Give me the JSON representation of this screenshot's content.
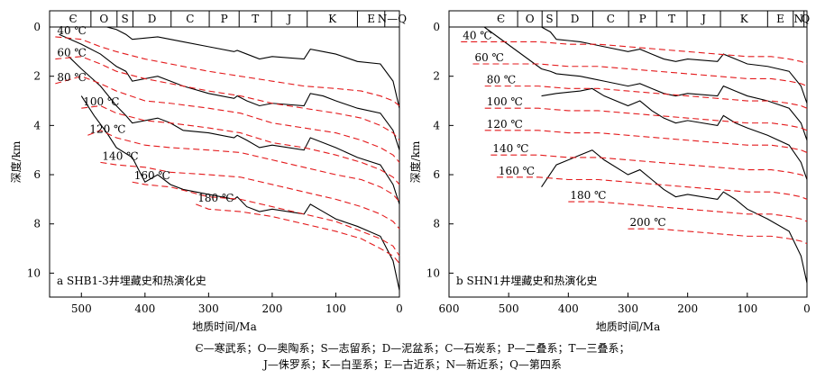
{
  "colors": {
    "burial": "#000000",
    "isotherm": "#e41a1c",
    "frame": "#000000"
  },
  "chart_data": [
    {
      "type": "line",
      "panel_label": "a SHB1-3井埋藏史和热演化史",
      "xlabel": "地质时间/Ma",
      "ylabel": "深度/km",
      "xlim": [
        550,
        0
      ],
      "ylim": [
        11,
        -0.5
      ],
      "xticks": [
        500,
        400,
        300,
        200,
        100,
        0
      ],
      "yticks": [
        0,
        2,
        4,
        6,
        8,
        10
      ],
      "periods": [
        {
          "label": "Є",
          "start": 541,
          "end": 485
        },
        {
          "label": "O",
          "start": 485,
          "end": 444
        },
        {
          "label": "S",
          "start": 444,
          "end": 419
        },
        {
          "label": "D",
          "start": 419,
          "end": 359
        },
        {
          "label": "C",
          "start": 359,
          "end": 299
        },
        {
          "label": "P",
          "start": 299,
          "end": 252
        },
        {
          "label": "T",
          "start": 252,
          "end": 201
        },
        {
          "label": "J",
          "start": 201,
          "end": 145
        },
        {
          "label": "K",
          "start": 145,
          "end": 66
        },
        {
          "label": "E",
          "start": 66,
          "end": 23
        },
        {
          "label": "N—Q",
          "start": 23,
          "end": 0
        }
      ],
      "burial_lines": [
        {
          "x": [
            541,
            500,
            460,
            445,
            430,
            420,
            380,
            360,
            340,
            300,
            260,
            255,
            240,
            220,
            200,
            150,
            140,
            120,
            100,
            66,
            30,
            10,
            0
          ],
          "y": [
            0,
            0,
            0,
            0.1,
            0.3,
            0.5,
            0.4,
            0.5,
            0.6,
            0.8,
            1.0,
            0.95,
            1.1,
            1.3,
            1.2,
            1.3,
            0.9,
            1.0,
            1.1,
            1.4,
            1.5,
            2.2,
            3.3
          ]
        },
        {
          "x": [
            535,
            500,
            470,
            445,
            430,
            420,
            380,
            360,
            340,
            300,
            260,
            255,
            240,
            220,
            200,
            150,
            140,
            120,
            100,
            66,
            30,
            10,
            0
          ],
          "y": [
            0.3,
            0.7,
            1.1,
            1.6,
            1.8,
            2.2,
            2.0,
            2.2,
            2.4,
            2.7,
            2.9,
            2.8,
            3.0,
            3.2,
            3.1,
            3.2,
            2.7,
            2.8,
            3.0,
            3.3,
            3.5,
            4.2,
            5.0
          ]
        },
        {
          "x": [
            520,
            500,
            470,
            445,
            430,
            420,
            380,
            360,
            340,
            300,
            260,
            255,
            240,
            220,
            200,
            150,
            140,
            120,
            100,
            66,
            30,
            10,
            0
          ],
          "y": [
            1.2,
            1.7,
            2.4,
            3.2,
            3.6,
            3.9,
            3.7,
            3.9,
            4.2,
            4.3,
            4.5,
            4.4,
            4.6,
            4.9,
            4.8,
            5.0,
            4.5,
            4.7,
            4.9,
            5.3,
            5.6,
            6.4,
            7.2
          ]
        },
        {
          "x": [
            500,
            480,
            460,
            445,
            420,
            400,
            380,
            360,
            340,
            300,
            260,
            255,
            240,
            220,
            200,
            150,
            140,
            120,
            100,
            66,
            30,
            10,
            0
          ],
          "y": [
            2.8,
            3.6,
            4.3,
            4.9,
            5.3,
            6.3,
            6.0,
            6.4,
            6.6,
            6.8,
            7.0,
            6.9,
            7.3,
            7.5,
            7.4,
            7.6,
            7.2,
            7.5,
            7.8,
            8.1,
            8.5,
            9.5,
            10.7
          ]
        }
      ],
      "isotherms": [
        {
          "label": "40 ℃",
          "x": [
            541,
            500,
            470,
            445,
            400,
            360,
            300,
            250,
            200,
            150,
            100,
            60,
            30,
            10,
            0
          ],
          "y": [
            0.4,
            0.5,
            0.8,
            1.0,
            1.3,
            1.5,
            1.8,
            2.0,
            2.2,
            2.4,
            2.5,
            2.6,
            2.8,
            3.0,
            3.2
          ]
        },
        {
          "label": "60 ℃",
          "x": [
            541,
            500,
            470,
            445,
            400,
            360,
            300,
            250,
            200,
            150,
            100,
            60,
            30,
            10,
            0
          ],
          "y": [
            1.3,
            1.2,
            1.5,
            1.8,
            2.1,
            2.3,
            2.6,
            2.8,
            3.1,
            3.3,
            3.5,
            3.7,
            4.0,
            4.3,
            4.6
          ]
        },
        {
          "label": "80 ℃",
          "x": [
            541,
            500,
            470,
            445,
            400,
            360,
            300,
            250,
            200,
            150,
            100,
            60,
            30,
            10,
            0
          ],
          "y": [
            2.3,
            2.0,
            2.3,
            2.6,
            3.0,
            3.1,
            3.3,
            3.5,
            3.9,
            4.1,
            4.3,
            4.6,
            4.9,
            5.2,
            5.5
          ]
        },
        {
          "label": "100 ℃",
          "x": [
            500,
            470,
            445,
            400,
            360,
            300,
            250,
            200,
            150,
            100,
            60,
            30,
            10,
            0
          ],
          "y": [
            3.3,
            3.2,
            3.5,
            3.8,
            3.9,
            4.1,
            4.3,
            4.7,
            4.9,
            5.2,
            5.5,
            5.8,
            6.1,
            6.4
          ]
        },
        {
          "label": "120 ℃",
          "x": [
            490,
            470,
            445,
            400,
            360,
            300,
            250,
            200,
            150,
            100,
            60,
            30,
            10,
            0
          ],
          "y": [
            4.4,
            4.2,
            4.5,
            4.8,
            4.9,
            5.0,
            5.1,
            5.4,
            5.7,
            6.0,
            6.2,
            6.5,
            6.8,
            7.1
          ]
        },
        {
          "label": "140 ℃",
          "x": [
            470,
            445,
            400,
            360,
            300,
            250,
            200,
            150,
            100,
            60,
            30,
            10,
            0
          ],
          "y": [
            5.5,
            5.6,
            5.7,
            5.9,
            6.0,
            6.1,
            6.4,
            6.7,
            7.0,
            7.3,
            7.6,
            7.9,
            8.2
          ]
        },
        {
          "label": "160 ℃",
          "x": [
            420,
            400,
            360,
            300,
            250,
            200,
            150,
            100,
            60,
            30,
            10,
            0
          ],
          "y": [
            6.3,
            6.4,
            6.5,
            6.9,
            7.0,
            7.3,
            7.6,
            7.9,
            8.3,
            8.6,
            8.9,
            9.3
          ]
        },
        {
          "label": "180 ℃",
          "x": [
            320,
            300,
            250,
            200,
            150,
            100,
            60,
            30,
            10,
            0
          ],
          "y": [
            7.2,
            7.4,
            7.5,
            7.7,
            8.0,
            8.3,
            8.6,
            9.0,
            9.3,
            9.6
          ]
        }
      ]
    },
    {
      "type": "line",
      "panel_label": "b SHN1井埋藏史和热演化史",
      "xlabel": "地质时间/Ma",
      "ylabel": "深度/km",
      "xlim": [
        600,
        0
      ],
      "ylim": [
        11,
        -0.5
      ],
      "xticks": [
        600,
        500,
        400,
        300,
        200,
        100,
        0
      ],
      "yticks": [
        0,
        2,
        4,
        6,
        8,
        10
      ],
      "periods": [
        {
          "label": "Є",
          "start": 541,
          "end": 485
        },
        {
          "label": "O",
          "start": 485,
          "end": 444
        },
        {
          "label": "S",
          "start": 444,
          "end": 419
        },
        {
          "label": "D",
          "start": 419,
          "end": 359
        },
        {
          "label": "C",
          "start": 359,
          "end": 299
        },
        {
          "label": "P",
          "start": 299,
          "end": 252
        },
        {
          "label": "T",
          "start": 252,
          "end": 201
        },
        {
          "label": "J",
          "start": 201,
          "end": 145
        },
        {
          "label": "K",
          "start": 145,
          "end": 66
        },
        {
          "label": "E",
          "start": 66,
          "end": 23
        },
        {
          "label": "N",
          "start": 23,
          "end": 5
        },
        {
          "label": "Q",
          "start": 5,
          "end": 0
        }
      ],
      "burial_lines": [
        {
          "x": [
            541,
            445,
            430,
            420,
            380,
            360,
            340,
            300,
            280,
            260,
            240,
            220,
            200,
            150,
            140,
            120,
            100,
            66,
            30,
            10,
            0
          ],
          "y": [
            0,
            0,
            0.2,
            0.5,
            0.6,
            0.7,
            0.8,
            1.0,
            0.9,
            1.1,
            1.3,
            1.4,
            1.3,
            1.4,
            1.1,
            1.3,
            1.5,
            1.6,
            1.8,
            2.4,
            3.1
          ]
        },
        {
          "x": [
            541,
            445,
            430,
            420,
            380,
            360,
            340,
            300,
            280,
            260,
            240,
            220,
            200,
            150,
            140,
            120,
            100,
            66,
            30,
            10,
            0
          ],
          "y": [
            0,
            1.7,
            1.8,
            1.9,
            2.0,
            2.1,
            2.2,
            2.4,
            2.3,
            2.5,
            2.7,
            2.8,
            2.7,
            2.8,
            2.4,
            2.6,
            2.8,
            3.0,
            3.3,
            3.9,
            4.6
          ]
        },
        {
          "x": [
            445,
            420,
            380,
            360,
            340,
            300,
            280,
            260,
            240,
            220,
            200,
            150,
            140,
            120,
            100,
            66,
            30,
            10,
            0
          ],
          "y": [
            2.8,
            2.7,
            2.6,
            2.5,
            2.8,
            3.2,
            3.0,
            3.4,
            3.7,
            3.9,
            3.8,
            4.0,
            3.6,
            3.9,
            4.1,
            4.4,
            4.8,
            5.5,
            6.2
          ]
        },
        {
          "x": [
            445,
            420,
            380,
            360,
            340,
            300,
            280,
            260,
            240,
            220,
            200,
            150,
            140,
            120,
            100,
            66,
            30,
            10,
            0
          ],
          "y": [
            6.5,
            5.6,
            5.2,
            5.0,
            5.4,
            6.0,
            5.8,
            6.2,
            6.6,
            6.9,
            6.8,
            7.0,
            6.7,
            7.0,
            7.4,
            7.8,
            8.3,
            9.3,
            10.4
          ]
        }
      ],
      "isotherms": [
        {
          "label": "40 ℃",
          "x": [
            580,
            500,
            450,
            400,
            350,
            300,
            250,
            200,
            150,
            100,
            60,
            30,
            10,
            0
          ],
          "y": [
            0.6,
            0.6,
            0.6,
            0.7,
            0.7,
            0.8,
            0.9,
            1.0,
            1.1,
            1.2,
            1.2,
            1.3,
            1.4,
            1.5
          ]
        },
        {
          "label": "60 ℃",
          "x": [
            560,
            500,
            450,
            400,
            350,
            300,
            250,
            200,
            150,
            100,
            60,
            30,
            10,
            0
          ],
          "y": [
            1.5,
            1.5,
            1.5,
            1.6,
            1.6,
            1.7,
            1.8,
            1.9,
            2.0,
            2.1,
            2.1,
            2.2,
            2.3,
            2.4
          ]
        },
        {
          "label": "80 ℃",
          "x": [
            540,
            500,
            450,
            400,
            350,
            300,
            250,
            200,
            150,
            100,
            60,
            30,
            10,
            0
          ],
          "y": [
            2.4,
            2.4,
            2.4,
            2.5,
            2.5,
            2.6,
            2.7,
            2.8,
            2.9,
            3.0,
            3.0,
            3.1,
            3.2,
            3.3
          ]
        },
        {
          "label": "100 ℃",
          "x": [
            540,
            500,
            450,
            400,
            350,
            300,
            250,
            200,
            150,
            100,
            60,
            30,
            10,
            0
          ],
          "y": [
            3.3,
            3.3,
            3.3,
            3.4,
            3.4,
            3.5,
            3.6,
            3.7,
            3.8,
            3.9,
            3.9,
            4.0,
            4.1,
            4.2
          ]
        },
        {
          "label": "120 ℃",
          "x": [
            540,
            500,
            450,
            400,
            350,
            300,
            250,
            200,
            150,
            100,
            60,
            30,
            10,
            0
          ],
          "y": [
            4.2,
            4.2,
            4.2,
            4.3,
            4.3,
            4.4,
            4.5,
            4.6,
            4.7,
            4.8,
            4.8,
            4.9,
            5.0,
            5.1
          ]
        },
        {
          "label": "140 ℃",
          "x": [
            530,
            500,
            450,
            400,
            350,
            300,
            250,
            200,
            150,
            100,
            60,
            30,
            10,
            0
          ],
          "y": [
            5.2,
            5.2,
            5.2,
            5.3,
            5.3,
            5.4,
            5.5,
            5.6,
            5.7,
            5.8,
            5.8,
            5.9,
            6.0,
            6.1
          ]
        },
        {
          "label": "160 ℃",
          "x": [
            520,
            500,
            450,
            400,
            350,
            300,
            250,
            200,
            150,
            100,
            60,
            30,
            10,
            0
          ],
          "y": [
            6.1,
            6.1,
            6.1,
            6.2,
            6.2,
            6.3,
            6.4,
            6.5,
            6.6,
            6.7,
            6.7,
            6.8,
            6.9,
            7.0
          ]
        },
        {
          "label": "180 ℃",
          "x": [
            400,
            350,
            300,
            250,
            200,
            150,
            100,
            60,
            30,
            10,
            0
          ],
          "y": [
            7.1,
            7.1,
            7.2,
            7.3,
            7.4,
            7.5,
            7.6,
            7.6,
            7.7,
            7.8,
            7.9
          ]
        },
        {
          "label": "200 ℃",
          "x": [
            300,
            250,
            200,
            150,
            100,
            60,
            30,
            10,
            0
          ],
          "y": [
            8.2,
            8.2,
            8.3,
            8.4,
            8.5,
            8.5,
            8.6,
            8.7,
            8.8
          ]
        }
      ]
    }
  ],
  "legend_line1": "Є—寒武系；O—奥陶系；S—志留系；D—泥盆系；C—石炭系；P—二叠系；T—三叠系；",
  "legend_line2": "J—侏罗系；K—白垩系；E—古近系；N—新近系；Q—第四系"
}
